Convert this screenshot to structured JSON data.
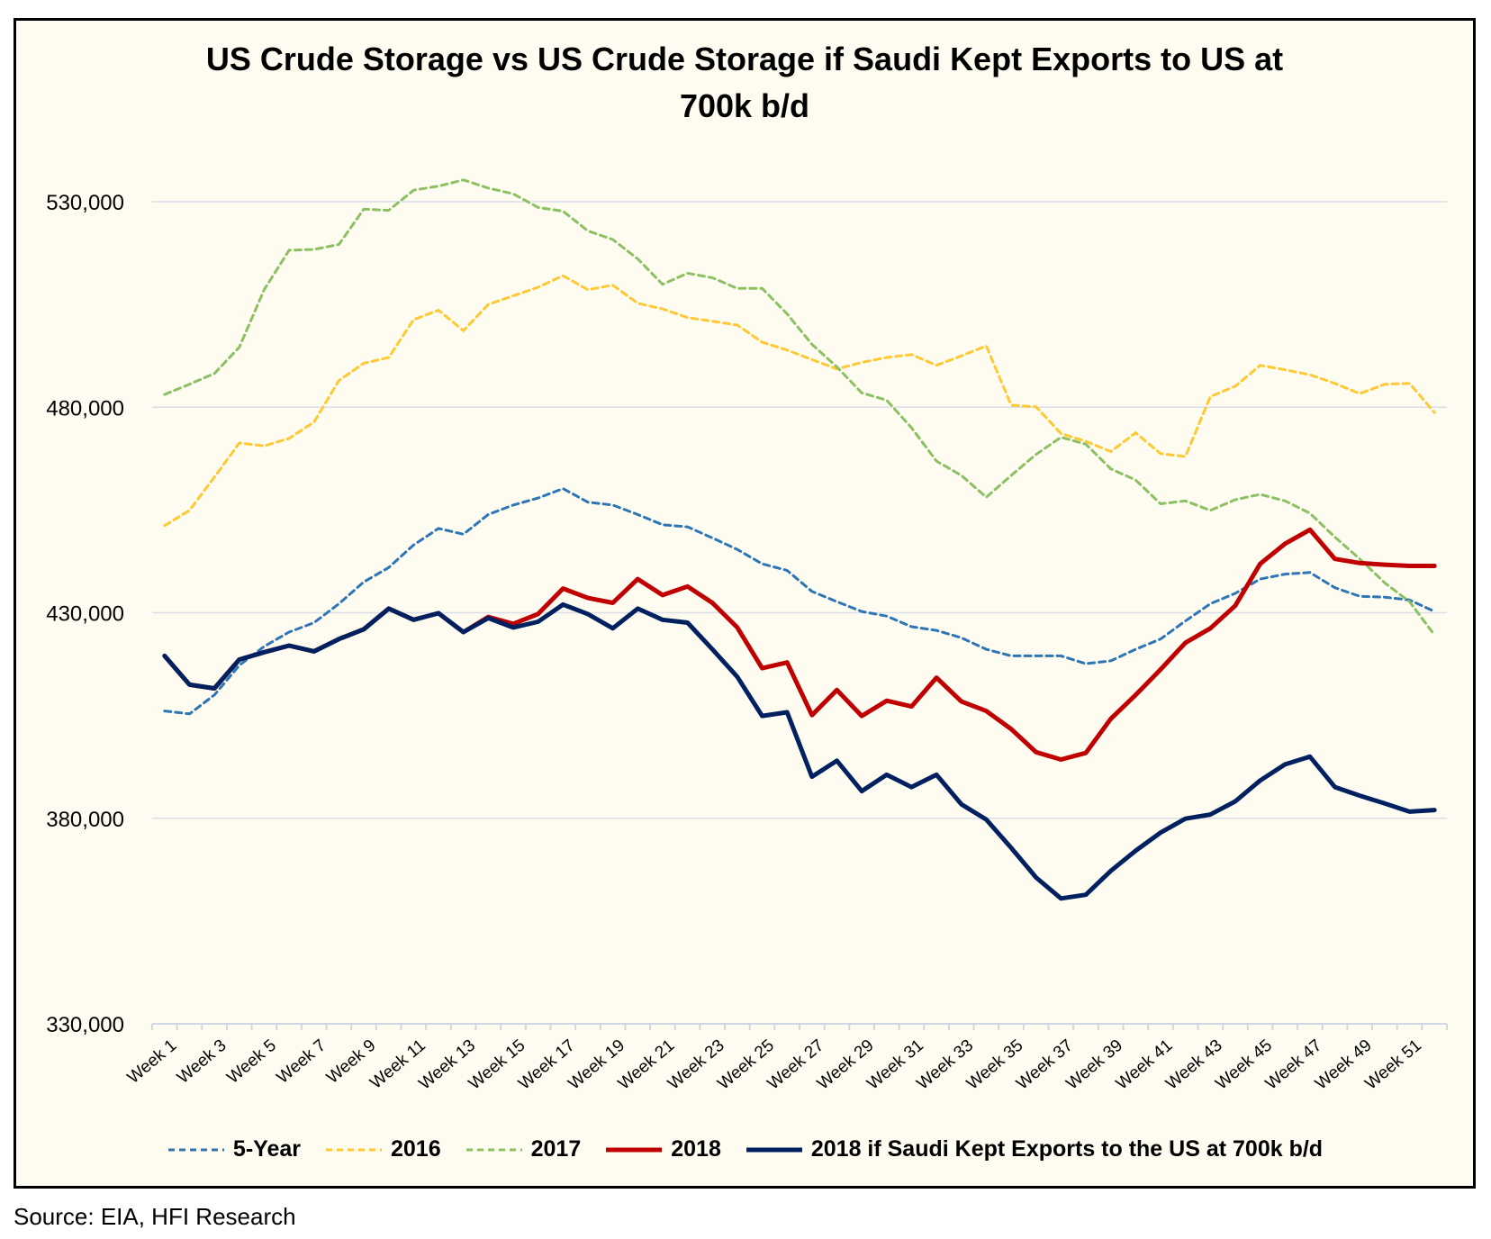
{
  "chart_data": {
    "type": "line",
    "title": "US Crude Storage vs US Crude Storage if Saudi Kept Exports to US at 700k b/d",
    "title_lines": [
      "US Crude Storage vs US Crude Storage if Saudi Kept Exports to US at",
      "700k b/d"
    ],
    "xlabel": "",
    "ylabel": "",
    "ylim": [
      330000,
      550000
    ],
    "yticks": [
      330000,
      380000,
      430000,
      480000,
      530000
    ],
    "ytick_labels": [
      "330,000",
      "380,000",
      "430,000",
      "480,000",
      "530,000"
    ],
    "x": [
      "Week 1",
      "Week 2",
      "Week 3",
      "Week 4",
      "Week 5",
      "Week 6",
      "Week 7",
      "Week 8",
      "Week 9",
      "Week 10",
      "Week 11",
      "Week 12",
      "Week 13",
      "Week 14",
      "Week 15",
      "Week 16",
      "Week 17",
      "Week 18",
      "Week 19",
      "Week 20",
      "Week 21",
      "Week 22",
      "Week 23",
      "Week 24",
      "Week 25",
      "Week 26",
      "Week 27",
      "Week 28",
      "Week 29",
      "Week 30",
      "Week 31",
      "Week 32",
      "Week 33",
      "Week 34",
      "Week 35",
      "Week 36",
      "Week 37",
      "Week 38",
      "Week 39",
      "Week 40",
      "Week 41",
      "Week 42",
      "Week 43",
      "Week 44",
      "Week 45",
      "Week 46",
      "Week 47",
      "Week 48",
      "Week 49",
      "Week 50",
      "Week 51",
      "Week 52"
    ],
    "grid": true,
    "legend_position": "bottom",
    "series": [
      {
        "name": "5-Year",
        "color": "#2E75B6",
        "dash": true,
        "width": 3,
        "values": [
          406.1,
          405.4,
          410,
          417.2,
          421.8,
          425.3,
          427.6,
          432.2,
          437.5,
          441,
          446.5,
          450.5,
          449.1,
          453.9,
          456.2,
          457.9,
          460.2,
          456.9,
          456.2,
          453.9,
          451.4,
          450.9,
          448.2,
          445.4,
          441.9,
          440.3,
          435.2,
          432.7,
          430.3,
          429.2,
          426.6,
          425.7,
          423.9,
          421.1,
          419.5,
          419.5,
          419.5,
          417.6,
          418.3,
          421.1,
          423.6,
          428,
          432.2,
          434.7,
          438.2,
          439.4,
          439.8,
          436.1,
          434,
          433.8,
          433.1,
          430.3
        ]
      },
      {
        "name": "2016",
        "color": "#FFC935",
        "dash": true,
        "width": 3,
        "values": [
          451.2,
          454.9,
          463,
          471.3,
          470.6,
          472.4,
          476.4,
          486.5,
          490.7,
          492.1,
          501.3,
          503.6,
          498.6,
          505,
          507.1,
          509.2,
          512,
          508.6,
          509.7,
          505.3,
          503.9,
          501.8,
          500.9,
          500,
          495.8,
          493.9,
          491.6,
          489.3,
          490.9,
          492.1,
          492.8,
          490.2,
          492.5,
          494.9,
          480.5,
          480.1,
          473.6,
          471.7,
          469.2,
          473.8,
          468.7,
          468,
          482.6,
          485.1,
          490.2,
          489.1,
          487.9,
          485.8,
          483.3,
          485.6,
          485.8,
          478.7
        ]
      },
      {
        "name": "2017",
        "color": "#8CC063",
        "dash": true,
        "width": 3,
        "values": [
          483.1,
          485.6,
          488.2,
          494.6,
          508.6,
          518.2,
          518.4,
          519.6,
          528.2,
          527.9,
          532.8,
          533.8,
          535.3,
          533.3,
          531.9,
          528.6,
          527.7,
          522.9,
          520.8,
          516.1,
          509.9,
          512.6,
          511.5,
          508.9,
          508.9,
          502.7,
          495.3,
          489.8,
          483.5,
          481.7,
          475,
          466.9,
          463.4,
          458.1,
          463.4,
          468.5,
          472.7,
          471,
          465,
          462.3,
          456.5,
          457.2,
          454.9,
          457.5,
          458.8,
          457.2,
          454.2,
          448.4,
          443.1,
          437.3,
          432.7,
          424.6
        ]
      },
      {
        "name": "2018",
        "color": "#C00000",
        "dash": false,
        "width": 5,
        "values": [
          419.5,
          412.5,
          411.6,
          418.6,
          420.4,
          422,
          420.6,
          423.6,
          426,
          431,
          428.3,
          429.9,
          425.3,
          429,
          427.3,
          429.7,
          435.9,
          433.6,
          432.4,
          438.2,
          434.3,
          436.4,
          432.4,
          426.4,
          416.5,
          417.9,
          405.1,
          411.2,
          404.9,
          408.6,
          407.2,
          414.2,
          408.4,
          406.1,
          401.7,
          396.1,
          394.3,
          395.9,
          404.2,
          410,
          416.2,
          422.7,
          426.2,
          431.7,
          441.9,
          446.8,
          450.2,
          443.1,
          442.1,
          441.7,
          441.4,
          441.4
        ]
      },
      {
        "name": "2018 if Saudi Kept Exports to the US at 700k b/d",
        "color": "#002060",
        "dash": false,
        "width": 5,
        "values": [
          419.5,
          412.5,
          411.6,
          418.6,
          420.4,
          422,
          420.6,
          423.6,
          426,
          431,
          428.3,
          429.9,
          425.3,
          428.7,
          426.4,
          427.8,
          432,
          429.7,
          426.2,
          431,
          428.3,
          427.6,
          421.1,
          414.4,
          404.9,
          405.8,
          390.1,
          394,
          386.6,
          390.6,
          387.6,
          390.6,
          383.4,
          379.7,
          372.8,
          365.6,
          360.5,
          361.4,
          367.2,
          372.1,
          376.5,
          379.9,
          380.9,
          384.1,
          389.2,
          393.1,
          395,
          387.6,
          385.5,
          383.6,
          381.6,
          382
        ]
      }
    ],
    "value_units": "thousand barrels (values listed in thousands)"
  },
  "source": "Source: EIA, HFI Research"
}
